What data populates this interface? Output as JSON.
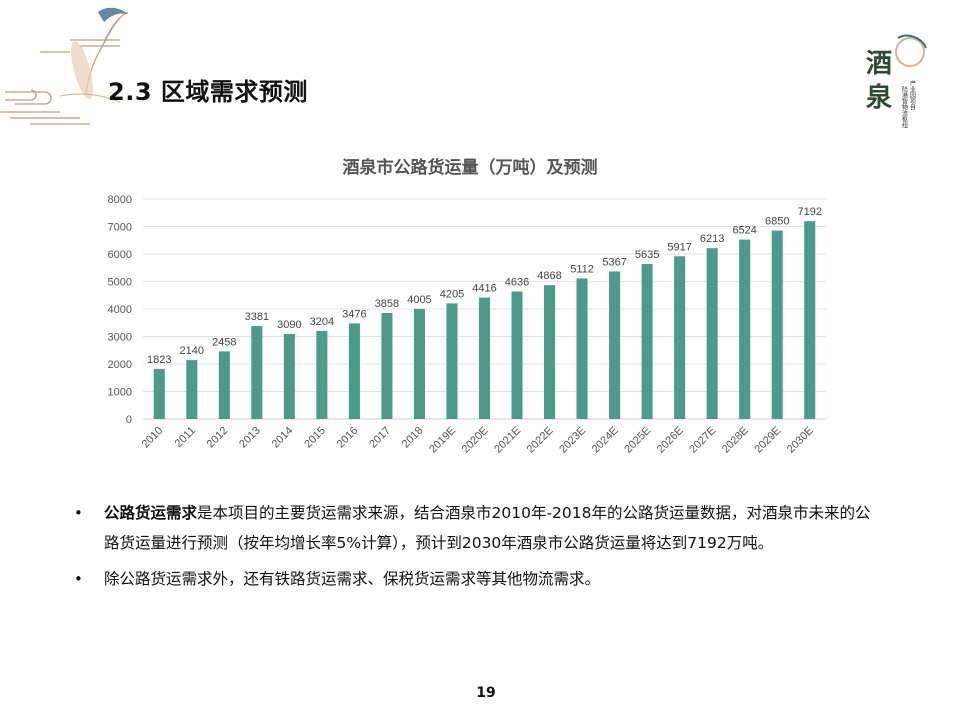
{
  "slide": {
    "title": "2.3 区域需求预测",
    "page_number": "19"
  },
  "logo": {
    "big_chars": "酒泉",
    "small_lines": [
      "产业园项目",
      "陆港智物流枢纽"
    ],
    "accent_color": "#c8a27a"
  },
  "chart_data": {
    "type": "bar",
    "title": "酒泉市公路货运量（万吨）及预测",
    "xlabel": "",
    "ylabel": "",
    "categories": [
      "2010",
      "2011",
      "2012",
      "2013",
      "2014",
      "2015",
      "2016",
      "2017",
      "2018",
      "2019E",
      "2020E",
      "2021E",
      "2022E",
      "2023E",
      "2024E",
      "2025E",
      "2026E",
      "2027E",
      "2028E",
      "2029E",
      "2030E"
    ],
    "values": [
      1823,
      2140,
      2458,
      3381,
      3090,
      3204,
      3476,
      3858,
      4005,
      4205,
      4416,
      4636,
      4868,
      5112,
      5367,
      5635,
      5917,
      6213,
      6524,
      6850,
      7192
    ],
    "ylim": [
      0,
      8000
    ],
    "yticks": [
      0,
      1000,
      2000,
      3000,
      4000,
      5000,
      6000,
      7000,
      8000
    ],
    "grid": true,
    "bar_color": "#4e9a8a",
    "legend": "none"
  },
  "bullets": [
    {
      "bold": "公路货运需求",
      "text": "是本项目的主要货运需求来源，结合酒泉市2010年-2018年的公路货运量数据，对酒泉市未来的公路货运量进行预测（按年均增长率5%计算），预计到2030年酒泉市公路货运量将达到7192万吨。"
    },
    {
      "bold": "",
      "text": "除公路货运需求外，还有铁路货运需求、保税货运需求等其他物流需求。"
    }
  ]
}
